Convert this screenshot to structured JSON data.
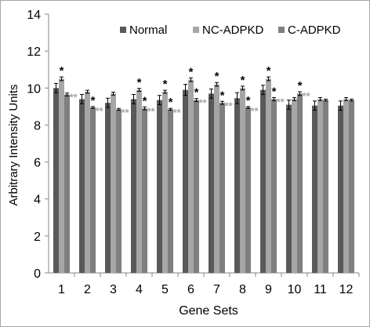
{
  "colors": {
    "normal": "#595959",
    "nc": "#a6a6a6",
    "c": "#7f7f7f",
    "star_black": "#000000",
    "star_gray": "#a6a6a6",
    "grid": "#a6a6a6"
  },
  "chart_data": {
    "type": "bar",
    "title": "",
    "xlabel": "Gene Sets",
    "ylabel": "Arbitrary Intensity Units",
    "ylim": [
      0,
      14
    ],
    "yticks": [
      "0",
      "2",
      "4",
      "6",
      "8",
      "10",
      "12",
      "14"
    ],
    "categories": [
      "1",
      "2",
      "3",
      "4",
      "5",
      "6",
      "7",
      "8",
      "9",
      "10",
      "11",
      "12"
    ],
    "legend_position": "top-right",
    "grid": false,
    "series": [
      {
        "name": "Normal",
        "color": "#595959",
        "values": [
          10.0,
          9.4,
          9.2,
          9.4,
          9.35,
          9.9,
          9.7,
          9.45,
          9.9,
          9.1,
          9.05,
          9.05
        ],
        "errors": [
          0.25,
          0.25,
          0.25,
          0.25,
          0.25,
          0.3,
          0.25,
          0.3,
          0.25,
          0.25,
          0.25,
          0.25
        ]
      },
      {
        "name": "NC-ADPKD",
        "color": "#a6a6a6",
        "values": [
          10.5,
          9.8,
          9.7,
          9.9,
          9.8,
          10.45,
          10.2,
          10.0,
          10.5,
          9.4,
          9.4,
          9.4
        ],
        "errors": [
          0.1,
          0.08,
          0.08,
          0.08,
          0.08,
          0.1,
          0.1,
          0.1,
          0.1,
          0.08,
          0.08,
          0.08
        ]
      },
      {
        "name": "C-ADPKD",
        "color": "#7f7f7f",
        "values": [
          9.65,
          8.95,
          8.85,
          8.9,
          8.85,
          9.35,
          9.2,
          8.95,
          9.4,
          9.7,
          9.35,
          9.35
        ],
        "errors": [
          0.08,
          0.05,
          0.05,
          0.08,
          0.05,
          0.08,
          0.08,
          0.05,
          0.08,
          0.1,
          0.05,
          0.05
        ]
      }
    ],
    "annotations": {
      "note": "Significance markers drawn above bars",
      "black_star": "*",
      "gray_star": "**",
      "markers": [
        {
          "category": "1",
          "series": "NC-ADPKD",
          "text": "*",
          "style": "black"
        },
        {
          "category": "1",
          "series": "C-ADPKD",
          "text": "**",
          "style": "gray"
        },
        {
          "category": "2",
          "series": "C-ADPKD",
          "text": "*",
          "style": "black"
        },
        {
          "category": "2",
          "series": "C-ADPKD",
          "text": "**",
          "style": "gray"
        },
        {
          "category": "3",
          "series": "C-ADPKD",
          "text": "**",
          "style": "gray"
        },
        {
          "category": "4",
          "series": "NC-ADPKD",
          "text": "*",
          "style": "black"
        },
        {
          "category": "4",
          "series": "C-ADPKD",
          "text": "*",
          "style": "black"
        },
        {
          "category": "4",
          "series": "C-ADPKD",
          "text": "**",
          "style": "gray"
        },
        {
          "category": "5",
          "series": "NC-ADPKD",
          "text": "*",
          "style": "black"
        },
        {
          "category": "5",
          "series": "C-ADPKD",
          "text": "*",
          "style": "black"
        },
        {
          "category": "5",
          "series": "C-ADPKD",
          "text": "**",
          "style": "gray"
        },
        {
          "category": "6",
          "series": "NC-ADPKD",
          "text": "*",
          "style": "black"
        },
        {
          "category": "6",
          "series": "C-ADPKD",
          "text": "*",
          "style": "black"
        },
        {
          "category": "6",
          "series": "C-ADPKD",
          "text": "**",
          "style": "gray"
        },
        {
          "category": "7",
          "series": "NC-ADPKD",
          "text": "*",
          "style": "black"
        },
        {
          "category": "7",
          "series": "C-ADPKD",
          "text": "*",
          "style": "black"
        },
        {
          "category": "7",
          "series": "C-ADPKD",
          "text": "**",
          "style": "gray"
        },
        {
          "category": "8",
          "series": "NC-ADPKD",
          "text": "*",
          "style": "black"
        },
        {
          "category": "8",
          "series": "C-ADPKD",
          "text": "*",
          "style": "black"
        },
        {
          "category": "8",
          "series": "C-ADPKD",
          "text": "**",
          "style": "gray"
        },
        {
          "category": "9",
          "series": "NC-ADPKD",
          "text": "*",
          "style": "black"
        },
        {
          "category": "9",
          "series": "C-ADPKD",
          "text": "*",
          "style": "black"
        },
        {
          "category": "9",
          "series": "C-ADPKD",
          "text": "**",
          "style": "gray"
        },
        {
          "category": "10",
          "series": "C-ADPKD",
          "text": "*",
          "style": "black"
        },
        {
          "category": "10",
          "series": "C-ADPKD",
          "text": "**",
          "style": "gray"
        }
      ]
    }
  }
}
